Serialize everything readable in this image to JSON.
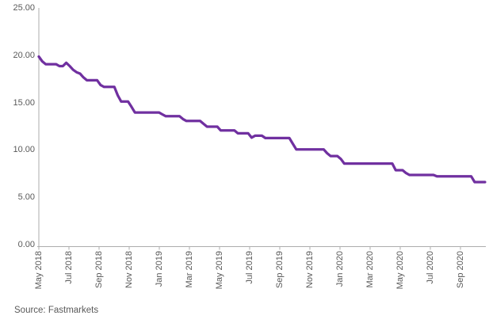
{
  "source_note": "Source: Fastmarkets",
  "colors": {
    "line": "#7030A0",
    "axis": "#ADADAD",
    "label_text": "#595959",
    "background": "#ffffff"
  },
  "chart_data": {
    "type": "line",
    "title": "",
    "legend": "none",
    "grid": false,
    "frequency": "weekly",
    "x_axis": {
      "tick_labels": [
        "May 2018",
        "Jul 2018",
        "Sep 2018",
        "Nov 2018",
        "Jan 2019",
        "Mar 2019",
        "May 2019",
        "Jul 2019",
        "Sep 2019",
        "Nov 2019",
        "Jan 2020",
        "Mar 2020",
        "May 2020",
        "Jul 2020",
        "Sep 2020"
      ]
    },
    "y_axis": {
      "tick_labels": [
        "0.00",
        "5.00",
        "10.00",
        "15.00",
        "20.00",
        "25.00"
      ],
      "tick_values": [
        0,
        5,
        10,
        15,
        20,
        25
      ],
      "range": [
        0,
        25
      ]
    },
    "series": [
      {
        "name": "series-1",
        "color": "#7030A0",
        "values": [
          19.9,
          19.4,
          19.1,
          19.1,
          19.1,
          19.1,
          18.9,
          18.9,
          19.25,
          18.9,
          18.5,
          18.25,
          18.1,
          17.7,
          17.4,
          17.4,
          17.4,
          17.4,
          16.9,
          16.7,
          16.7,
          16.7,
          16.7,
          15.8,
          15.15,
          15.15,
          15.15,
          14.6,
          14.0,
          14.0,
          14.0,
          14.0,
          14.0,
          14.0,
          14.0,
          14.0,
          13.8,
          13.6,
          13.6,
          13.6,
          13.6,
          13.6,
          13.3,
          13.1,
          13.1,
          13.1,
          13.1,
          13.1,
          12.8,
          12.5,
          12.5,
          12.5,
          12.5,
          12.1,
          12.1,
          12.1,
          12.1,
          12.1,
          11.8,
          11.8,
          11.8,
          11.8,
          11.35,
          11.55,
          11.55,
          11.55,
          11.3,
          11.3,
          11.3,
          11.3,
          11.3,
          11.3,
          11.3,
          11.3,
          10.7,
          10.1,
          10.1,
          10.1,
          10.1,
          10.1,
          10.1,
          10.1,
          10.1,
          10.1,
          9.7,
          9.4,
          9.4,
          9.4,
          9.1,
          8.6,
          8.6,
          8.6,
          8.6,
          8.6,
          8.6,
          8.6,
          8.6,
          8.6,
          8.6,
          8.6,
          8.6,
          8.6,
          8.6,
          8.6,
          7.9,
          7.9,
          7.9,
          7.6,
          7.4,
          7.4,
          7.4,
          7.4,
          7.4,
          7.4,
          7.4,
          7.4,
          7.25,
          7.25,
          7.25,
          7.25,
          7.25,
          7.25,
          7.25,
          7.25,
          7.25,
          7.25,
          7.25,
          6.65,
          6.65,
          6.65,
          6.65
        ]
      }
    ]
  }
}
